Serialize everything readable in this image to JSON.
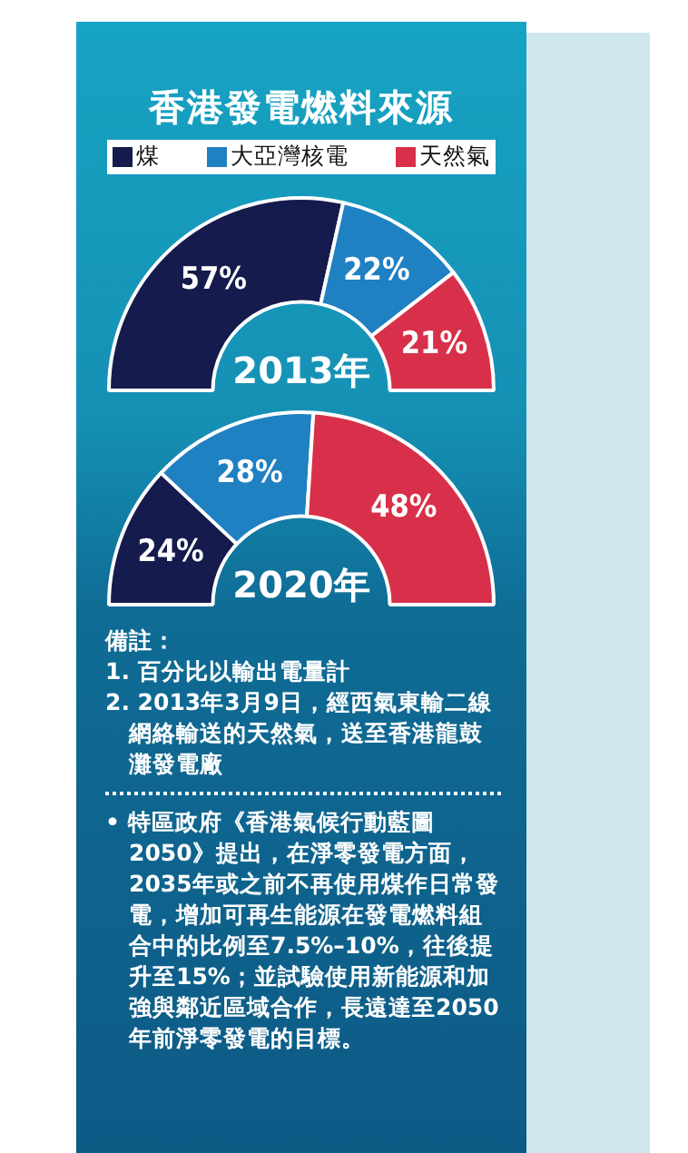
{
  "chart_data": [
    {
      "type": "donut",
      "title": "香港發電燃料來源",
      "subtitle": "2013年",
      "categories": [
        "煤",
        "大亞灣核電",
        "天然氣"
      ],
      "values": [
        57,
        22,
        21
      ],
      "colors": [
        "#161b4d",
        "#1f80c2",
        "#d8304a"
      ],
      "value_labels": [
        "57%",
        "22%",
        "21%"
      ],
      "legend": "top"
    },
    {
      "type": "donut",
      "subtitle": "2020年",
      "categories": [
        null,
        null,
        null
      ],
      "values": [
        24,
        28,
        48
      ],
      "colors": [
        "#161b4d",
        "#1f80c2",
        "#d8304a"
      ],
      "value_labels": [
        "24%",
        "28%",
        "48%"
      ],
      "legend": false,
      "annotations": [
        "備註：",
        "1. 百分比以輸出電量計",
        "2. 2013年3月9日，經西氣東輸二線網絡輸送的天然氣，送至香港龍鼓灘發電廠",
        "• 特區政府《香港氣候行動藍圖2050》提出，在淨零發電方面，2035年或之前不再使用煤作日常發電，增加可再生能源在發電燃料組合中的比例至7.5%–10%，往後提升至15%；並試驗使用新能源和加強與鄰近區域合作，長遠達至2050年前淨零發電的目標。"
      ]
    }
  ]
}
